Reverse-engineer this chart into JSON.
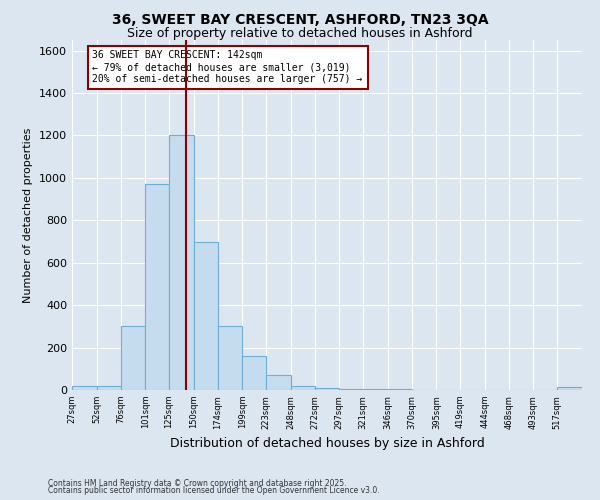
{
  "title_line1": "36, SWEET BAY CRESCENT, ASHFORD, TN23 3QA",
  "title_line2": "Size of property relative to detached houses in Ashford",
  "xlabel": "Distribution of detached houses by size in Ashford",
  "ylabel": "Number of detached properties",
  "footnote1": "Contains HM Land Registry data © Crown copyright and database right 2025.",
  "footnote2": "Contains public sector information licensed under the Open Government Licence v3.0.",
  "annotation_line1": "36 SWEET BAY CRESCENT: 142sqm",
  "annotation_line2": "← 79% of detached houses are smaller (3,019)",
  "annotation_line3": "20% of semi-detached houses are larger (757) →",
  "red_line_x": 142,
  "bin_edges": [
    27,
    52,
    76,
    101,
    125,
    150,
    174,
    199,
    223,
    248,
    272,
    297,
    321,
    346,
    370,
    395,
    419,
    444,
    468,
    493,
    517,
    542
  ],
  "bar_heights": [
    20,
    20,
    300,
    970,
    1200,
    700,
    300,
    160,
    70,
    20,
    10,
    5,
    5,
    3,
    2,
    2,
    2,
    2,
    2,
    2,
    15
  ],
  "bar_color": "#c5dcef",
  "bar_edge_color": "#6baed6",
  "red_line_color": "#8b0000",
  "background_color": "#dce6f1",
  "ylim": [
    0,
    1650
  ],
  "yticks": [
    0,
    200,
    400,
    600,
    800,
    1000,
    1200,
    1400,
    1600
  ],
  "grid_color": "#ffffff",
  "annotation_box_facecolor": "#ffffff",
  "annotation_box_edgecolor": "#8b0000",
  "title1_fontsize": 10,
  "title2_fontsize": 9,
  "ylabel_fontsize": 8,
  "xlabel_fontsize": 9,
  "ytick_fontsize": 8,
  "xtick_fontsize": 6,
  "annot_fontsize": 7,
  "footnote_fontsize": 5.5
}
